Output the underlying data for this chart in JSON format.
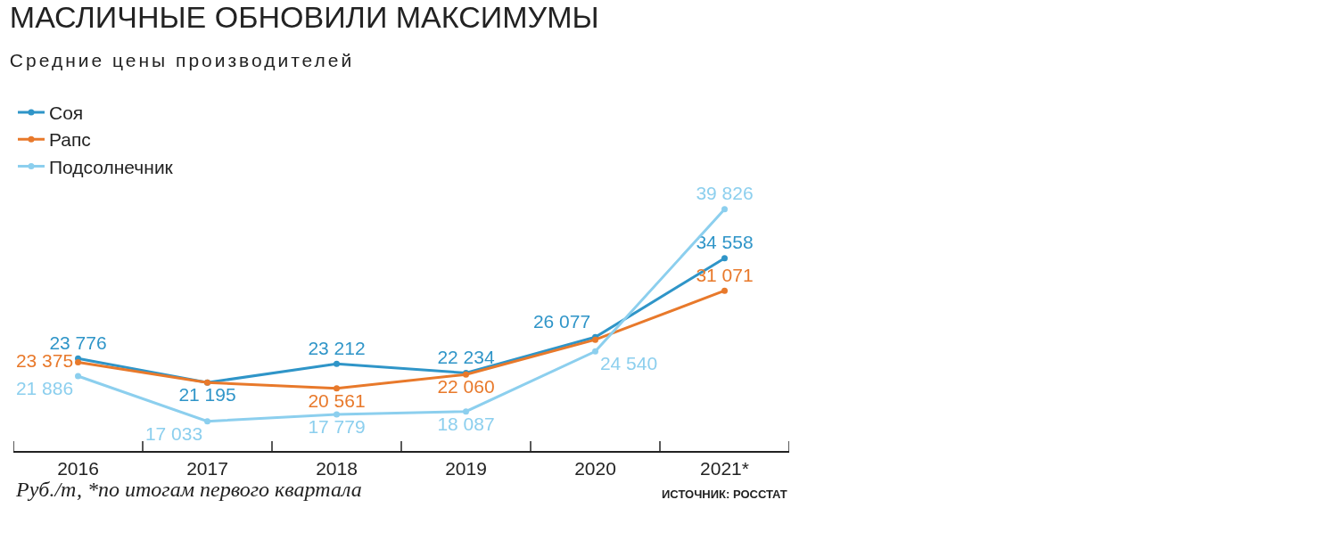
{
  "chart_data": {
    "type": "line",
    "title": "МАСЛИЧНЫЕ ОБНОВИЛИ МАКСИМУМЫ",
    "subtitle": "Средние цены производителей",
    "categories": [
      "2016",
      "2017",
      "2018",
      "2019",
      "2020",
      "2021*"
    ],
    "series": [
      {
        "name": "Соя",
        "color": "#2f95c8",
        "values": [
          23776,
          21195,
          23212,
          22234,
          26077,
          34558
        ],
        "value_labels": [
          "23 776",
          "21 195",
          "23 212",
          "22 234",
          "26 077",
          "34 558"
        ]
      },
      {
        "name": "Рапс",
        "color": "#e8792b",
        "values": [
          23375,
          21195,
          20561,
          22060,
          25800,
          31071
        ],
        "value_labels": [
          "23 375",
          null,
          "20 561",
          "22 060",
          null,
          "31 071"
        ]
      },
      {
        "name": "Подсолнечник",
        "color": "#8ccfee",
        "values": [
          21886,
          17033,
          17779,
          18087,
          24540,
          39826
        ],
        "value_labels": [
          "21 886",
          "17 033",
          "17 779",
          "18 087",
          "24 540",
          "39 826"
        ]
      }
    ],
    "annotations": [
      "Руб./т, *по итогам первого квартала",
      "ИСТОЧНИК: РОССТАТ"
    ],
    "legend": "top left",
    "marker": "circle",
    "line_style": "solid"
  }
}
